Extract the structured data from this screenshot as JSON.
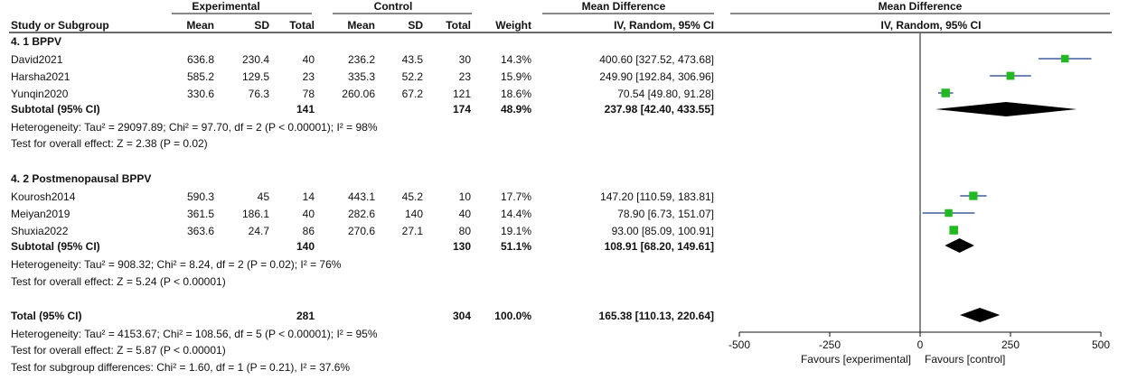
{
  "header": {
    "group_experimental": "Experimental",
    "group_control": "Control",
    "group_md": "Mean Difference",
    "group_md_plot": "Mean Difference",
    "col_study": "Study or Subgroup",
    "col_mean_e": "Mean",
    "col_sd_e": "SD",
    "col_total_e": "Total",
    "col_mean_c": "Mean",
    "col_sd_c": "SD",
    "col_total_c": "Total",
    "col_weight": "Weight",
    "col_ci": "IV, Random, 95% CI",
    "col_ci_plot": "IV, Random, 95% CI"
  },
  "subgroups": [
    {
      "title": "4.  1 BPPV",
      "studies": [
        {
          "name": "David2021",
          "mean_e": "636.8",
          "sd_e": "230.4",
          "total_e": "40",
          "mean_c": "236.2",
          "sd_c": "43.5",
          "total_c": "30",
          "weight": "14.3%",
          "ci_text": "400.60 [327.52, 473.68]"
        },
        {
          "name": "Harsha2021",
          "mean_e": "585.2",
          "sd_e": "129.5",
          "total_e": "23",
          "mean_c": "335.3",
          "sd_c": "52.2",
          "total_c": "23",
          "weight": "15.9%",
          "ci_text": "249.90 [192.84, 306.96]"
        },
        {
          "name": "Yunqin2020",
          "mean_e": "330.6",
          "sd_e": "76.3",
          "total_e": "78",
          "mean_c": "260.06",
          "sd_c": "67.2",
          "total_c": "121",
          "weight": "18.6%",
          "ci_text": "70.54 [49.80, 91.28]"
        }
      ],
      "subtotal": {
        "label": "Subtotal (95% CI)",
        "total_e": "141",
        "total_c": "174",
        "weight": "48.9%",
        "ci_text": "237.98 [42.40, 433.55]"
      },
      "heterogeneity": "Heterogeneity: Tau² = 29097.89; Chi² = 97.70, df = 2 (P < 0.00001); I² = 98%",
      "overall_effect": "Test for overall effect: Z = 2.38 (P = 0.02)"
    },
    {
      "title": "4.  2 Postmenopausal BPPV",
      "studies": [
        {
          "name": "Kourosh2014",
          "mean_e": "590.3",
          "sd_e": "45",
          "total_e": "14",
          "mean_c": "443.1",
          "sd_c": "45.2",
          "total_c": "10",
          "weight": "17.7%",
          "ci_text": "147.20 [110.59, 183.81]"
        },
        {
          "name": "Meiyan2019",
          "mean_e": "361.5",
          "sd_e": "186.1",
          "total_e": "40",
          "mean_c": "282.6",
          "sd_c": "140",
          "total_c": "40",
          "weight": "14.4%",
          "ci_text": "78.90 [6.73, 151.07]"
        },
        {
          "name": "Shuxia2022",
          "mean_e": "363.6",
          "sd_e": "24.7",
          "total_e": "86",
          "mean_c": "270.6",
          "sd_c": "27.1",
          "total_c": "80",
          "weight": "19.1%",
          "ci_text": "93.00 [85.09, 100.91]"
        }
      ],
      "subtotal": {
        "label": "Subtotal (95% CI)",
        "total_e": "140",
        "total_c": "130",
        "weight": "51.1%",
        "ci_text": "108.91 [68.20, 149.61]"
      },
      "heterogeneity": "Heterogeneity: Tau² = 908.32; Chi² = 8.24, df = 2 (P = 0.02); I² = 76%",
      "overall_effect": "Test for overall effect: Z = 5.24 (P < 0.00001)"
    }
  ],
  "total": {
    "label": "Total (95% CI)",
    "total_e": "281",
    "total_c": "304",
    "weight": "100.0%",
    "ci_text": "165.38 [110.13, 220.64]",
    "heterogeneity": "Heterogeneity: Tau² = 4153.67; Chi² = 108.56, df = 5 (P < 0.00001); I² = 95%",
    "overall_effect": "Test for overall effect: Z = 5.87 (P < 0.00001)",
    "subgroup_diff": "Test for subgroup differences: Chi² = 1.60, df = 1 (P = 0.21), I² = 37.6%"
  },
  "chart_data": {
    "type": "forest",
    "xlim": [
      -500,
      500
    ],
    "x_ticks": [
      "-500",
      "-250",
      "0",
      "250",
      "500"
    ],
    "favours_left": "Favours [experimental]",
    "favours_right": "Favours [control]",
    "studies": [
      {
        "name": "David2021",
        "md": 400.6,
        "lo": 327.52,
        "hi": 473.68,
        "weight": 14.3
      },
      {
        "name": "Harsha2021",
        "md": 249.9,
        "lo": 192.84,
        "hi": 306.96,
        "weight": 15.9
      },
      {
        "name": "Yunqin2020",
        "md": 70.54,
        "lo": 49.8,
        "hi": 91.28,
        "weight": 18.6
      },
      {
        "name": "Kourosh2014",
        "md": 147.2,
        "lo": 110.59,
        "hi": 183.81,
        "weight": 17.7
      },
      {
        "name": "Meiyan2019",
        "md": 78.9,
        "lo": 6.73,
        "hi": 151.07,
        "weight": 14.4
      },
      {
        "name": "Shuxia2022",
        "md": 93.0,
        "lo": 85.09,
        "hi": 100.91,
        "weight": 19.1
      }
    ],
    "pooled": [
      {
        "name": "Subtotal 4.1",
        "md": 237.98,
        "lo": 42.4,
        "hi": 433.55
      },
      {
        "name": "Subtotal 4.2",
        "md": 108.91,
        "lo": 68.2,
        "hi": 149.61
      },
      {
        "name": "Total",
        "md": 165.38,
        "lo": 110.13,
        "hi": 220.64
      }
    ],
    "marker_color": "#22b822",
    "diamond_color": "#000000"
  }
}
